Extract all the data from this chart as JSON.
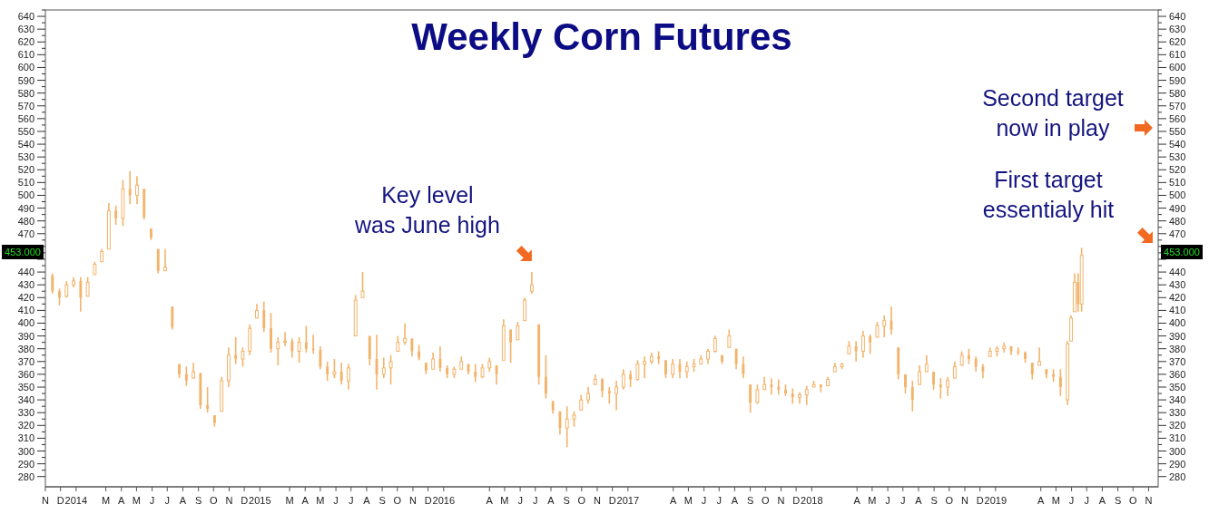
{
  "chart_data": {
    "type": "candlestick",
    "title": "Weekly Corn Futures",
    "x": [
      "2013-11-15",
      "2013-11-29",
      "2013-12-13",
      "2013-12-27",
      "2014-01-10",
      "2014-01-24",
      "2014-02-07",
      "2014-02-21",
      "2014-03-07",
      "2014-03-21",
      "2014-04-04",
      "2014-04-18",
      "2014-05-02",
      "2014-05-16",
      "2014-05-30",
      "2014-06-13",
      "2014-06-27",
      "2014-07-11",
      "2014-07-25",
      "2014-08-08",
      "2014-08-22",
      "2014-09-05",
      "2014-09-19",
      "2014-10-03",
      "2014-10-17",
      "2014-10-31",
      "2014-11-14",
      "2014-11-28",
      "2014-12-12",
      "2014-12-26",
      "2015-01-09",
      "2015-01-23",
      "2015-02-06",
      "2015-02-20",
      "2015-03-06",
      "2015-03-20",
      "2015-04-03",
      "2015-04-17",
      "2015-05-01",
      "2015-05-15",
      "2015-05-29",
      "2015-06-12",
      "2015-06-26",
      "2015-07-10",
      "2015-07-24",
      "2015-08-07",
      "2015-08-21",
      "2015-09-04",
      "2015-09-18",
      "2015-10-02",
      "2015-10-16",
      "2015-10-30",
      "2015-11-13",
      "2015-11-27",
      "2015-12-11",
      "2015-12-25",
      "2016-01-08",
      "2016-01-22",
      "2016-02-05",
      "2016-02-19",
      "2016-03-04",
      "2016-03-18",
      "2016-04-01",
      "2016-04-15",
      "2016-04-29",
      "2016-05-13",
      "2016-05-27",
      "2016-06-10",
      "2016-06-24",
      "2016-07-08",
      "2016-07-22",
      "2016-08-05",
      "2016-08-19",
      "2016-09-02",
      "2016-09-16",
      "2016-09-30",
      "2016-10-14",
      "2016-10-28",
      "2016-11-11",
      "2016-11-25",
      "2016-12-09",
      "2016-12-23",
      "2017-01-06",
      "2017-01-20",
      "2017-02-03",
      "2017-02-17",
      "2017-03-03",
      "2017-03-17",
      "2017-03-31",
      "2017-04-14",
      "2017-04-28",
      "2017-05-12",
      "2017-05-26",
      "2017-06-09",
      "2017-06-23",
      "2017-07-07",
      "2017-07-21",
      "2017-08-04",
      "2017-08-18",
      "2017-09-01",
      "2017-09-15",
      "2017-09-29",
      "2017-10-13",
      "2017-10-27",
      "2017-11-10",
      "2017-11-24",
      "2017-12-08",
      "2017-12-22",
      "2018-01-05",
      "2018-01-19",
      "2018-02-02",
      "2018-02-16",
      "2018-03-02",
      "2018-03-16",
      "2018-03-30",
      "2018-04-13",
      "2018-04-27",
      "2018-05-11",
      "2018-05-25",
      "2018-06-08",
      "2018-06-22",
      "2018-07-06",
      "2018-07-20",
      "2018-08-03",
      "2018-08-17",
      "2018-08-31",
      "2018-09-14",
      "2018-09-28",
      "2018-10-12",
      "2018-10-26",
      "2018-11-09",
      "2018-11-23",
      "2018-12-07",
      "2018-12-21",
      "2019-01-04",
      "2019-01-18",
      "2019-02-01",
      "2019-02-15",
      "2019-03-01",
      "2019-03-15",
      "2019-03-29",
      "2019-04-12",
      "2019-04-26",
      "2019-05-10",
      "2019-05-24",
      "2019-05-31",
      "2019-06-07",
      "2019-06-14",
      "2019-06-21"
    ],
    "ohlc": [
      [
        437,
        439,
        423,
        425
      ],
      [
        425,
        427,
        414,
        420
      ],
      [
        421,
        433,
        420,
        430
      ],
      [
        430,
        436,
        428,
        433
      ],
      [
        433,
        436,
        409,
        420
      ],
      [
        421,
        436,
        421,
        432
      ],
      [
        438,
        448,
        438,
        446
      ],
      [
        448,
        458,
        448,
        456
      ],
      [
        458,
        494,
        458,
        488
      ],
      [
        488,
        492,
        477,
        482
      ],
      [
        482,
        512,
        476,
        505
      ],
      [
        505,
        519,
        493,
        500
      ],
      [
        500,
        515,
        493,
        508
      ],
      [
        505,
        505,
        481,
        483
      ],
      [
        474,
        474,
        465,
        467
      ],
      [
        458,
        458,
        439,
        441
      ],
      [
        441,
        458,
        441,
        444
      ],
      [
        413,
        413,
        395,
        397
      ],
      [
        368,
        368,
        357,
        360
      ],
      [
        360,
        366,
        351,
        355
      ],
      [
        357,
        369,
        357,
        362
      ],
      [
        361,
        361,
        333,
        336
      ],
      [
        336,
        350,
        330,
        333
      ],
      [
        328,
        328,
        319,
        322
      ],
      [
        331,
        358,
        331,
        355
      ],
      [
        355,
        381,
        350,
        375
      ],
      [
        375,
        389,
        368,
        372
      ],
      [
        372,
        381,
        366,
        378
      ],
      [
        378,
        399,
        375,
        396
      ],
      [
        404,
        415,
        404,
        410
      ],
      [
        410,
        417,
        393,
        396
      ],
      [
        396,
        408,
        377,
        380
      ],
      [
        380,
        389,
        367,
        385
      ],
      [
        385,
        393,
        382,
        386
      ],
      [
        386,
        388,
        373,
        378
      ],
      [
        378,
        389,
        369,
        385
      ],
      [
        385,
        398,
        377,
        380
      ],
      [
        380,
        391,
        376,
        379
      ],
      [
        379,
        382,
        364,
        366
      ],
      [
        366,
        370,
        355,
        360
      ],
      [
        360,
        372,
        357,
        362
      ],
      [
        362,
        369,
        352,
        355
      ],
      [
        355,
        368,
        348,
        365
      ],
      [
        390,
        422,
        390,
        418
      ],
      [
        420,
        440,
        420,
        425
      ],
      [
        390,
        390,
        367,
        372
      ],
      [
        372,
        391,
        348,
        360
      ],
      [
        360,
        373,
        357,
        365
      ],
      [
        365,
        375,
        352,
        370
      ],
      [
        378,
        390,
        378,
        385
      ],
      [
        385,
        400,
        383,
        388
      ],
      [
        388,
        388,
        374,
        378
      ],
      [
        378,
        383,
        371,
        373
      ],
      [
        369,
        369,
        360,
        363
      ],
      [
        364,
        377,
        364,
        372
      ],
      [
        372,
        382,
        362,
        365
      ],
      [
        365,
        367,
        357,
        360
      ],
      [
        360,
        366,
        357,
        364
      ],
      [
        364,
        374,
        364,
        370
      ],
      [
        368,
        368,
        360,
        362
      ],
      [
        362,
        368,
        354,
        358
      ],
      [
        358,
        368,
        357,
        365
      ],
      [
        365,
        373,
        362,
        370
      ],
      [
        367,
        367,
        352,
        360
      ],
      [
        371,
        403,
        371,
        398
      ],
      [
        395,
        395,
        369,
        385
      ],
      [
        387,
        401,
        387,
        398
      ],
      [
        402,
        420,
        402,
        418
      ],
      [
        425,
        440,
        423,
        430
      ],
      [
        399,
        399,
        352,
        358
      ],
      [
        358,
        375,
        341,
        345
      ],
      [
        339,
        339,
        329,
        332
      ],
      [
        331,
        331,
        313,
        318
      ],
      [
        318,
        335,
        303,
        325
      ],
      [
        325,
        331,
        319,
        328
      ],
      [
        332,
        344,
        332,
        340
      ],
      [
        340,
        350,
        337,
        345
      ],
      [
        352,
        360,
        352,
        356
      ],
      [
        356,
        357,
        342,
        347
      ],
      [
        347,
        350,
        337,
        345
      ],
      [
        345,
        355,
        332,
        350
      ],
      [
        350,
        364,
        348,
        360
      ],
      [
        360,
        363,
        350,
        356
      ],
      [
        356,
        371,
        355,
        368
      ],
      [
        368,
        374,
        357,
        370
      ],
      [
        370,
        377,
        368,
        374
      ],
      [
        374,
        378,
        368,
        372
      ],
      [
        371,
        371,
        357,
        360
      ],
      [
        360,
        372,
        357,
        368
      ],
      [
        368,
        372,
        357,
        362
      ],
      [
        362,
        370,
        357,
        366
      ],
      [
        366,
        372,
        362,
        368
      ],
      [
        368,
        375,
        368,
        372
      ],
      [
        372,
        380,
        368,
        378
      ],
      [
        378,
        390,
        377,
        388
      ],
      [
        375,
        375,
        368,
        370
      ],
      [
        381,
        395,
        381,
        390
      ],
      [
        380,
        380,
        364,
        368
      ],
      [
        368,
        374,
        357,
        360
      ],
      [
        352,
        352,
        330,
        338
      ],
      [
        338,
        352,
        337,
        348
      ],
      [
        348,
        358,
        348,
        352
      ],
      [
        352,
        357,
        344,
        350
      ],
      [
        350,
        356,
        344,
        348
      ],
      [
        348,
        352,
        343,
        345
      ],
      [
        345,
        349,
        337,
        342
      ],
      [
        342,
        346,
        337,
        344
      ],
      [
        344,
        351,
        336,
        348
      ],
      [
        350,
        355,
        350,
        352
      ],
      [
        352,
        352,
        346,
        350
      ],
      [
        351,
        358,
        351,
        356
      ],
      [
        362,
        369,
        362,
        366
      ],
      [
        366,
        369,
        364,
        368
      ],
      [
        376,
        386,
        376,
        382
      ],
      [
        382,
        386,
        370,
        378
      ],
      [
        378,
        394,
        373,
        390
      ],
      [
        390,
        391,
        376,
        385
      ],
      [
        389,
        401,
        389,
        398
      ],
      [
        398,
        406,
        389,
        402
      ],
      [
        402,
        413,
        391,
        395
      ],
      [
        381,
        381,
        356,
        360
      ],
      [
        360,
        360,
        345,
        350
      ],
      [
        350,
        355,
        331,
        340
      ],
      [
        352,
        367,
        352,
        362
      ],
      [
        362,
        375,
        362,
        368
      ],
      [
        362,
        362,
        348,
        352
      ],
      [
        352,
        357,
        341,
        350
      ],
      [
        350,
        358,
        343,
        355
      ],
      [
        357,
        370,
        357,
        366
      ],
      [
        367,
        378,
        367,
        375
      ],
      [
        375,
        380,
        368,
        372
      ],
      [
        372,
        374,
        362,
        366
      ],
      [
        366,
        368,
        357,
        362
      ],
      [
        374,
        381,
        374,
        378
      ],
      [
        378,
        382,
        374,
        380
      ],
      [
        380,
        385,
        377,
        382
      ],
      [
        382,
        382,
        375,
        378
      ],
      [
        378,
        381,
        375,
        377
      ],
      [
        377,
        378,
        369,
        372
      ],
      [
        369,
        369,
        356,
        360
      ],
      [
        367,
        381,
        367,
        370
      ],
      [
        364,
        364,
        357,
        360
      ],
      [
        360,
        364,
        354,
        358
      ],
      [
        358,
        364,
        343,
        350
      ],
      [
        340,
        386,
        336,
        384
      ],
      [
        386,
        406,
        386,
        404
      ],
      [
        409,
        439,
        409,
        432
      ],
      [
        432,
        439,
        409,
        415
      ],
      [
        415,
        459,
        409,
        453
      ]
    ],
    "color": "#f2b36a",
    "xlim": [
      "2013-11-01",
      "2019-11-20"
    ],
    "xticks": [
      {
        "value": "2013-11",
        "label": "N"
      },
      {
        "value": "2013-12",
        "label": "D"
      },
      {
        "value": "2014-01",
        "label": "2014"
      },
      {
        "value": "2014-03",
        "label": "M"
      },
      {
        "value": "2014-04",
        "label": "A"
      },
      {
        "value": "2014-05",
        "label": "M"
      },
      {
        "value": "2014-06",
        "label": "J"
      },
      {
        "value": "2014-07",
        "label": "J"
      },
      {
        "value": "2014-08",
        "label": "A"
      },
      {
        "value": "2014-09",
        "label": "S"
      },
      {
        "value": "2014-10",
        "label": "O"
      },
      {
        "value": "2014-11",
        "label": "N"
      },
      {
        "value": "2014-12",
        "label": "D"
      },
      {
        "value": "2015-01",
        "label": "2015"
      },
      {
        "value": "2015-03",
        "label": "M"
      },
      {
        "value": "2015-04",
        "label": "A"
      },
      {
        "value": "2015-05",
        "label": "M"
      },
      {
        "value": "2015-06",
        "label": "J"
      },
      {
        "value": "2015-07",
        "label": "J"
      },
      {
        "value": "2015-08",
        "label": "A"
      },
      {
        "value": "2015-09",
        "label": "S"
      },
      {
        "value": "2015-10",
        "label": "O"
      },
      {
        "value": "2015-11",
        "label": "N"
      },
      {
        "value": "2015-12",
        "label": "D"
      },
      {
        "value": "2016-01",
        "label": "2016"
      },
      {
        "value": "2016-04",
        "label": "A"
      },
      {
        "value": "2016-05",
        "label": "M"
      },
      {
        "value": "2016-06",
        "label": "J"
      },
      {
        "value": "2016-07",
        "label": "J"
      },
      {
        "value": "2016-08",
        "label": "A"
      },
      {
        "value": "2016-09",
        "label": "S"
      },
      {
        "value": "2016-10",
        "label": "O"
      },
      {
        "value": "2016-11",
        "label": "N"
      },
      {
        "value": "2016-12",
        "label": "D"
      },
      {
        "value": "2017-01",
        "label": "2017"
      },
      {
        "value": "2017-04",
        "label": "A"
      },
      {
        "value": "2017-05",
        "label": "M"
      },
      {
        "value": "2017-06",
        "label": "J"
      },
      {
        "value": "2017-07",
        "label": "J"
      },
      {
        "value": "2017-08",
        "label": "A"
      },
      {
        "value": "2017-09",
        "label": "S"
      },
      {
        "value": "2017-10",
        "label": "O"
      },
      {
        "value": "2017-11",
        "label": "N"
      },
      {
        "value": "2017-12",
        "label": "D"
      },
      {
        "value": "2018-01",
        "label": "2018"
      },
      {
        "value": "2018-04",
        "label": "A"
      },
      {
        "value": "2018-05",
        "label": "M"
      },
      {
        "value": "2018-06",
        "label": "J"
      },
      {
        "value": "2018-07",
        "label": "J"
      },
      {
        "value": "2018-08",
        "label": "A"
      },
      {
        "value": "2018-09",
        "label": "S"
      },
      {
        "value": "2018-10",
        "label": "O"
      },
      {
        "value": "2018-11",
        "label": "N"
      },
      {
        "value": "2018-12",
        "label": "D"
      },
      {
        "value": "2019-01",
        "label": "2019"
      },
      {
        "value": "2019-04",
        "label": "A"
      },
      {
        "value": "2019-05",
        "label": "M"
      },
      {
        "value": "2019-06",
        "label": "J"
      },
      {
        "value": "2019-07",
        "label": "J"
      },
      {
        "value": "2019-08",
        "label": "A"
      },
      {
        "value": "2019-09",
        "label": "S"
      },
      {
        "value": "2019-10",
        "label": "O"
      },
      {
        "value": "2019-11",
        "label": "N"
      }
    ],
    "ylim": [
      272,
      645
    ],
    "yticks": [
      280,
      290,
      300,
      310,
      320,
      330,
      340,
      350,
      360,
      370,
      380,
      390,
      400,
      410,
      420,
      430,
      440,
      {
        "value": 450,
        "label": null
      },
      {
        "value": 460,
        "label": null
      },
      470,
      480,
      490,
      500,
      510,
      520,
      530,
      540,
      550,
      560,
      570,
      580,
      590,
      600,
      610,
      620,
      630,
      640
    ],
    "y2lim": [
      272,
      645
    ],
    "y2ticks": [
      280,
      290,
      300,
      310,
      320,
      330,
      340,
      350,
      360,
      370,
      380,
      390,
      400,
      410,
      420,
      430,
      440,
      {
        "value": 450,
        "label": null
      },
      {
        "value": 460,
        "label": null
      },
      470,
      480,
      490,
      500,
      510,
      520,
      530,
      540,
      550,
      560,
      570,
      580,
      590,
      600,
      610,
      620,
      630,
      640
    ],
    "annotations": [
      {
        "text": "Key level\nwas June high",
        "x": "2016-06-24",
        "y": 440
      },
      "Second target\nnow in play",
      "First target\nessentialy hit",
      "453.000"
    ]
  }
}
